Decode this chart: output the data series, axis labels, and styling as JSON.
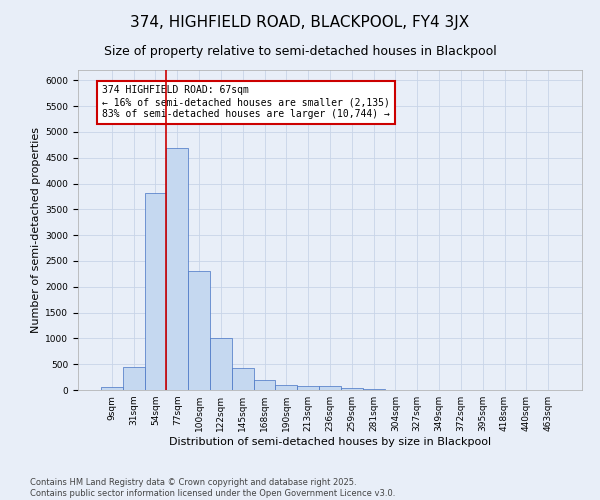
{
  "title1": "374, HIGHFIELD ROAD, BLACKPOOL, FY4 3JX",
  "title2": "Size of property relative to semi-detached houses in Blackpool",
  "xlabel": "Distribution of semi-detached houses by size in Blackpool",
  "ylabel": "Number of semi-detached properties",
  "categories": [
    "9sqm",
    "31sqm",
    "54sqm",
    "77sqm",
    "100sqm",
    "122sqm",
    "145sqm",
    "168sqm",
    "190sqm",
    "213sqm",
    "236sqm",
    "259sqm",
    "281sqm",
    "304sqm",
    "327sqm",
    "349sqm",
    "372sqm",
    "395sqm",
    "418sqm",
    "440sqm",
    "463sqm"
  ],
  "values": [
    50,
    450,
    3820,
    4680,
    2300,
    1000,
    420,
    195,
    95,
    80,
    70,
    30,
    10,
    5,
    3,
    2,
    1,
    1,
    0,
    0,
    0
  ],
  "bar_color": "#c5d8f0",
  "bar_edge_color": "#4472c4",
  "grid_color": "#c8d4e8",
  "background_color": "#e8eef8",
  "axes_background": "#e8eef8",
  "vline_x_index": 2.5,
  "vline_color": "#cc0000",
  "annotation_text": "374 HIGHFIELD ROAD: 67sqm\n← 16% of semi-detached houses are smaller (2,135)\n83% of semi-detached houses are larger (10,744) →",
  "annotation_box_color": "#cc0000",
  "ylim": [
    0,
    6200
  ],
  "yticks": [
    0,
    500,
    1000,
    1500,
    2000,
    2500,
    3000,
    3500,
    4000,
    4500,
    5000,
    5500,
    6000
  ],
  "footnote": "Contains HM Land Registry data © Crown copyright and database right 2025.\nContains public sector information licensed under the Open Government Licence v3.0.",
  "title1_fontsize": 11,
  "title2_fontsize": 9,
  "annotation_fontsize": 7,
  "ylabel_fontsize": 8,
  "xlabel_fontsize": 8,
  "tick_fontsize": 6.5,
  "footnote_fontsize": 6
}
